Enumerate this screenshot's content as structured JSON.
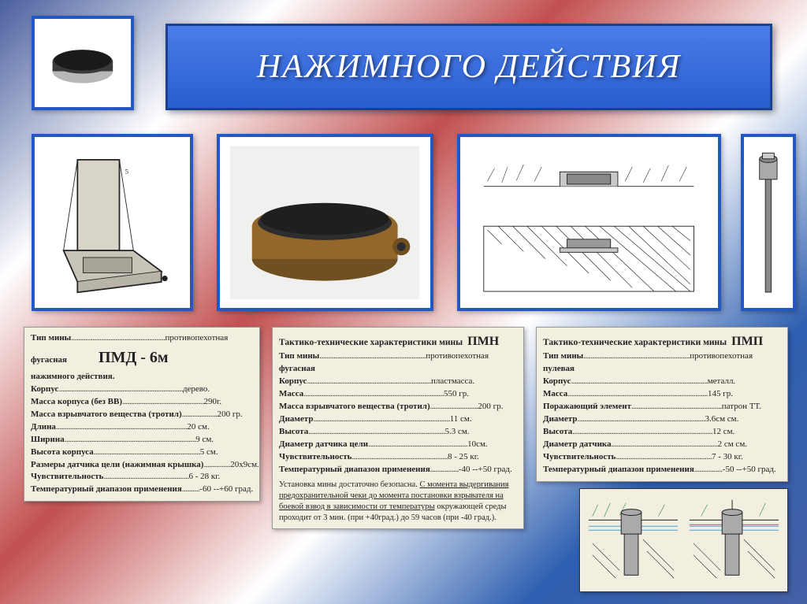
{
  "title": "НАЖИМНОГО  ДЕЙСТВИЯ",
  "card1": {
    "code": "ПМД - 6м",
    "rows": [
      {
        "k": "Тип мины",
        "v": "противопехотная"
      },
      {
        "k": "фугасная",
        "v": ""
      },
      {
        "k": "нажимного действия.",
        "v": ""
      },
      {
        "k": "Корпус",
        "v": "дерево."
      },
      {
        "k": "Масса корпуса (без ВВ)",
        "v": "290г."
      },
      {
        "k": "Масса взрывчатого вещества (тротил)",
        "v": "200 гр."
      },
      {
        "k": "Длина",
        "v": "20 см."
      },
      {
        "k": "Ширина",
        "v": "9 см."
      },
      {
        "k": "Высота корпуса",
        "v": "5 см."
      },
      {
        "k": "Размеры датчика цели (нажимная крышка)",
        "v": "20х9см."
      },
      {
        "k": "Чувствительность",
        "v": "6 - 28 кг."
      },
      {
        "k": "Температурный диапазон применения",
        "v": "-60 --+60 град."
      }
    ]
  },
  "card2": {
    "heading": "Тактико-технические характеристики мины",
    "code": "ПМН",
    "rows": [
      {
        "k": "Тип мины",
        "v": "противопехотная"
      },
      {
        "k": "фугасная",
        "v": ""
      },
      {
        "k": "Корпус",
        "v": "пластмасса."
      },
      {
        "k": "Масса",
        "v": "550 гр."
      },
      {
        "k": "Масса взрывчатого вещества (тротил)",
        "v": "200 гр."
      },
      {
        "k": "Диаметр",
        "v": "11 см."
      },
      {
        "k": "Высота",
        "v": "5.3 см."
      },
      {
        "k": "Диаметр датчика цели",
        "v": "10см."
      },
      {
        "k": "Чувствительность",
        "v": "8 - 25 кг."
      },
      {
        "k": "Температурный диапазон применения",
        "v": "-40 --+50 град."
      }
    ],
    "note_pre": "Установка мины достаточно безопасна. ",
    "note_u": "С момента выдергивания предохранительной чеки до момента постановки взрывателя на боевой взвод в зависимости от температуры",
    "note_post": " окружающей среды проходит от 3 мин. (при +40град.) до 59 часов (при -40 град.)."
  },
  "card3": {
    "heading": "Тактико-технические характеристики мины",
    "code": "ПМП",
    "rows": [
      {
        "k": "Тип мины",
        "v": "противопехотная"
      },
      {
        "k": "пулевая",
        "v": ""
      },
      {
        "k": "Корпус",
        "v": "металл."
      },
      {
        "k": "Масса",
        "v": "145 гр."
      },
      {
        "k": "Поражающий элемент",
        "v": "патрон ТТ."
      },
      {
        "k": "Диаметр",
        "v": "3.6см см."
      },
      {
        "k": "Высота",
        "v": "12 см."
      },
      {
        "k": "Диаметр датчика",
        "v": "2 см см."
      },
      {
        "k": "Чувствительность",
        "v": "7 - 30 кг."
      },
      {
        "k": "Температурный диапазон применения",
        "v": "-50 --+50 град."
      }
    ]
  },
  "colors": {
    "frame": "#2257c4",
    "card_bg": "#f3efe0"
  }
}
